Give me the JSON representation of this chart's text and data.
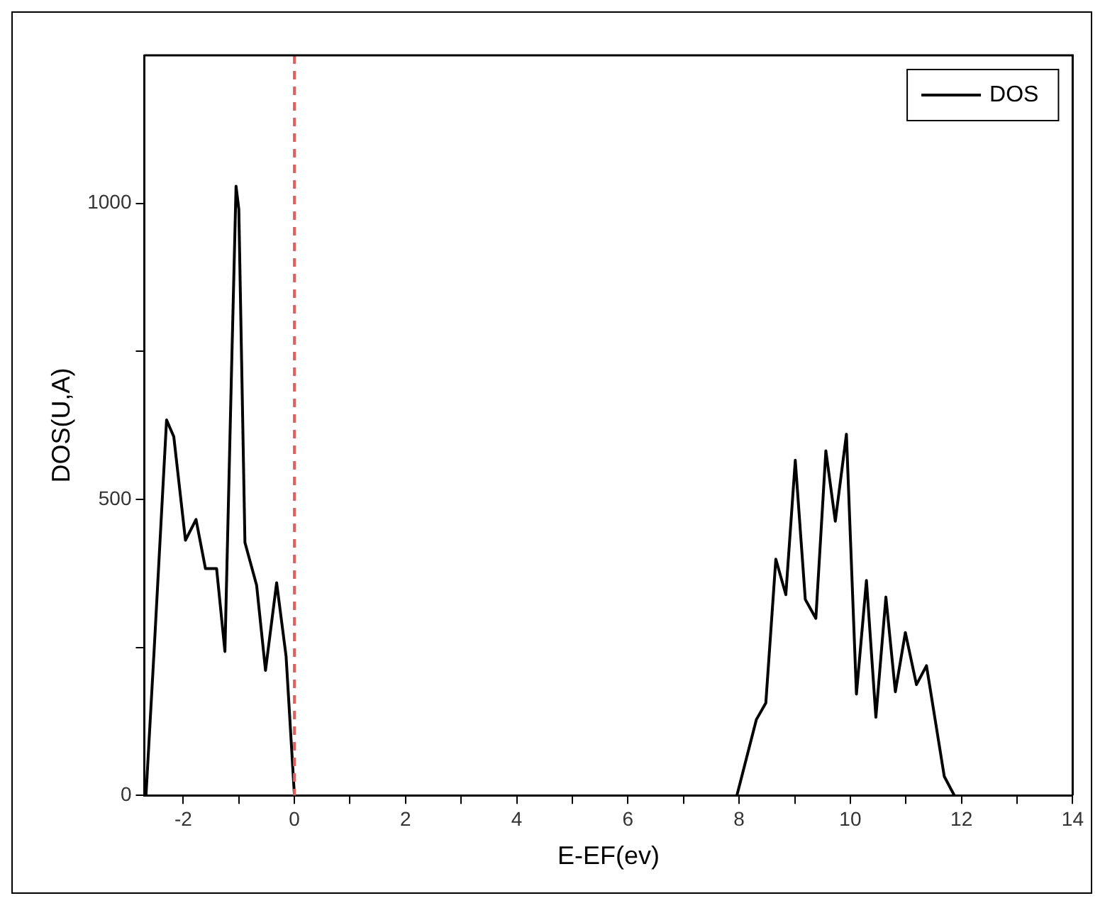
{
  "chart_data": {
    "type": "line",
    "xlabel": "E-EF(ev)",
    "ylabel": "DOS(U,A)",
    "x": [
      -2.67,
      -2.52,
      -2.3,
      -2.17,
      -1.96,
      -1.77,
      -1.6,
      -1.4,
      -1.25,
      -1.13,
      -1.05,
      -1.0,
      -0.89,
      -0.68,
      -0.52,
      -0.32,
      -0.15,
      0,
      null,
      7.96,
      8.31,
      8.48,
      8.66,
      8.84,
      9.01,
      9.19,
      9.38,
      9.56,
      9.73,
      9.93,
      10.11,
      10.29,
      10.46,
      10.64,
      10.81,
      10.99,
      11.19,
      11.37,
      11.69,
      11.87
    ],
    "series": [
      {
        "name": "DOS",
        "color": "#000000",
        "values": [
          0,
          251,
          634,
          606,
          431,
          466,
          383,
          383,
          243,
          722,
          1029,
          990,
          427,
          355,
          211,
          359,
          235,
          0,
          null,
          0,
          128,
          156,
          399,
          339,
          566,
          331,
          299,
          582,
          463,
          610,
          171,
          363,
          132,
          335,
          175,
          275,
          187,
          219,
          32,
          0
        ]
      }
    ],
    "xlim": [
      -2.7,
      14
    ],
    "xticks": [
      -2,
      {
        "value": -1,
        "label": null
      },
      0,
      {
        "value": 1,
        "label": null
      },
      2,
      {
        "value": 3,
        "label": null
      },
      4,
      {
        "value": 5,
        "label": null
      },
      6,
      {
        "value": 7,
        "label": null
      },
      8,
      {
        "value": 9,
        "label": null
      },
      10,
      {
        "value": 11,
        "label": null
      },
      12,
      {
        "value": 13,
        "label": null
      },
      14
    ],
    "ylim": [
      0,
      1250
    ],
    "yticks": [
      0,
      {
        "value": 250,
        "label": null
      },
      500,
      {
        "value": 750,
        "label": null
      },
      1000
    ],
    "ref_lines": [
      {
        "axis": "x",
        "value": 0,
        "color": "#e06060",
        "line_style": "dashed"
      }
    ],
    "grid": false,
    "legend": "top right",
    "marker": "none",
    "line_style": "solid"
  }
}
